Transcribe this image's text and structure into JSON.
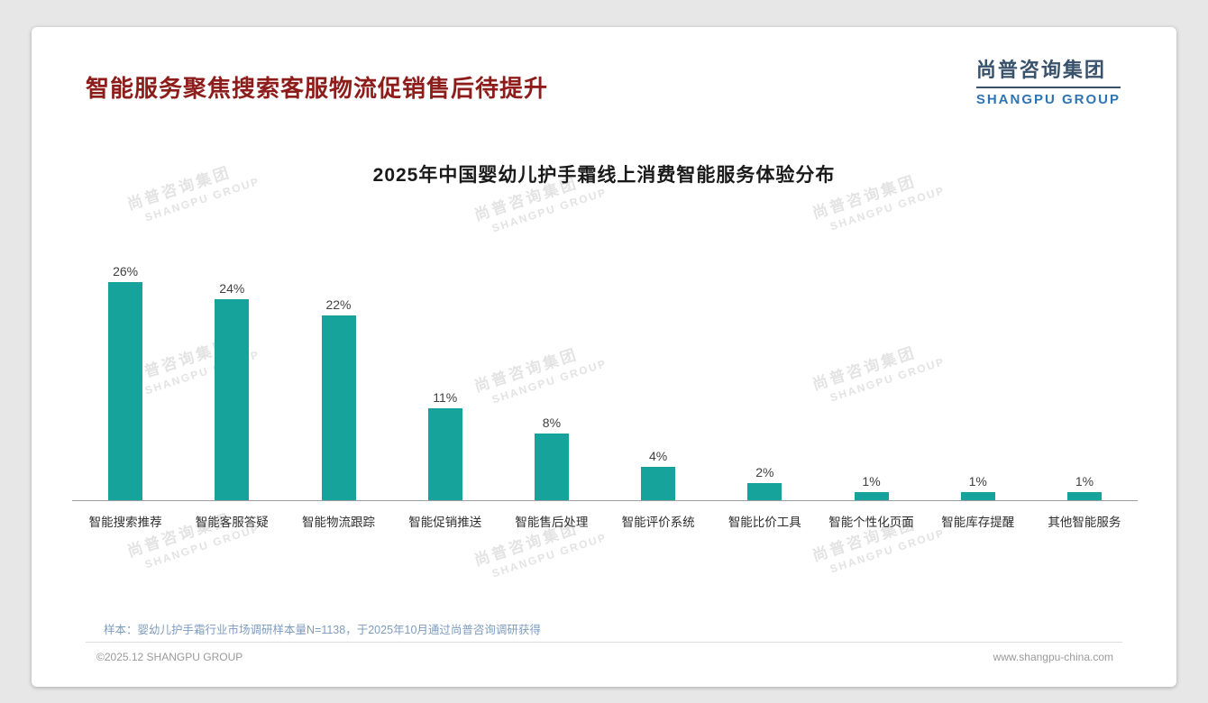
{
  "page": {
    "title": "智能服务聚焦搜索客服物流促销售后待提升",
    "logo": {
      "cn": "尚普咨询集团",
      "en": "SHANGPU GROUP"
    },
    "watermark": {
      "cn": "尚普咨询集团",
      "en": "SHANGPU GROUP"
    },
    "footnote": "样本：婴幼儿护手霜行业市场调研样本量N=1138，于2025年10月通过尚普咨询调研获得",
    "footer": {
      "left": "©2025.12 SHANGPU GROUP",
      "right": "www.shangpu-china.com"
    }
  },
  "colors": {
    "bar_teal": "#15a39c",
    "title_red": "#8d1d1b",
    "logo_dark": "#39526b",
    "logo_blue": "#2e74b5",
    "note_blue": "#7e9cbe"
  },
  "chart_data": {
    "type": "bar",
    "title": "2025年中国婴幼儿护手霜线上消费智能服务体验分布",
    "categories": [
      "智能搜索推荐",
      "智能客服答疑",
      "智能物流跟踪",
      "智能促销推送",
      "智能售后处理",
      "智能评价系统",
      "智能比价工具",
      "智能个性化页面",
      "智能库存提醒",
      "其他智能服务"
    ],
    "values": [
      26,
      24,
      22,
      11,
      8,
      4,
      2,
      1,
      1,
      1
    ],
    "unit": "%",
    "xlabel": "",
    "ylabel": "",
    "ylim": [
      0,
      28
    ],
    "grid": false,
    "legend": false,
    "bar_color": "#15a39c"
  }
}
